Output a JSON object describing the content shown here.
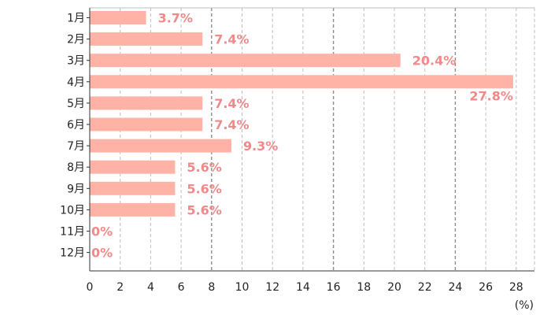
{
  "chart_data": {
    "type": "bar",
    "orientation": "horizontal",
    "categories": [
      "1月",
      "2月",
      "3月",
      "4月",
      "5月",
      "6月",
      "7月",
      "8月",
      "9月",
      "10月",
      "11月",
      "12月"
    ],
    "values": [
      3.7,
      7.4,
      20.4,
      27.8,
      7.4,
      7.4,
      9.3,
      5.6,
      5.6,
      5.6,
      0,
      0
    ],
    "value_labels": [
      "3.7%",
      "7.4%",
      "20.4%",
      "27.8%",
      "7.4%",
      "7.4%",
      "9.3%",
      "5.6%",
      "5.6%",
      "5.6%",
      "0%",
      "0%"
    ],
    "xticks": [
      0,
      2,
      4,
      6,
      8,
      10,
      12,
      14,
      16,
      18,
      20,
      22,
      24,
      26,
      28
    ],
    "xlim": [
      0,
      29
    ],
    "xunit": "(%)",
    "grid": true,
    "bar_color": "#ffb3a6",
    "label_color": "#f08a8a"
  }
}
